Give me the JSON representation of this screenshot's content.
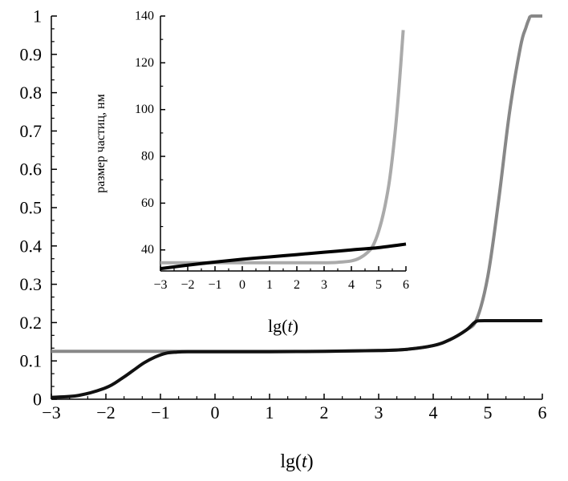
{
  "chart_data": [
    {
      "id": "main",
      "type": "line",
      "title": "",
      "xlabel_prefix": "lg(",
      "xlabel_var": "t",
      "xlabel_suffix": ")",
      "ylabel": "",
      "xlim": [
        -3,
        6
      ],
      "ylim": [
        0,
        1
      ],
      "xticks": [
        -3,
        -2,
        -1,
        0,
        1,
        2,
        3,
        4,
        5,
        6
      ],
      "xtick_labels": [
        "−3",
        "−2",
        "−1",
        "0",
        "1",
        "2",
        "3",
        "4",
        "5",
        "6"
      ],
      "yticks": [
        0,
        0.1,
        0.2,
        0.3,
        0.4,
        0.5,
        0.6,
        0.7,
        0.8,
        0.9,
        1
      ],
      "ytick_labels": [
        "0",
        "0.1",
        "0.2",
        "0.3",
        "0.4",
        "0.5",
        "0.6",
        "0.7",
        "0.8",
        "0.9",
        "1"
      ],
      "grid": false,
      "series": [
        {
          "color": "#888888",
          "x": [
            -3,
            -1,
            0,
            1,
            2,
            3,
            3.5,
            4,
            4.3,
            4.6,
            4.8,
            5.0,
            5.2,
            5.4,
            5.6,
            5.7,
            5.75,
            5.8,
            6
          ],
          "y": [
            0.125,
            0.125,
            0.125,
            0.125,
            0.125,
            0.127,
            0.13,
            0.14,
            0.155,
            0.18,
            0.21,
            0.32,
            0.52,
            0.75,
            0.92,
            0.97,
            0.99,
            1.0,
            1.0
          ]
        },
        {
          "color": "#111111",
          "x": [
            -3,
            -2.5,
            -2,
            -1.7,
            -1.5,
            -1.3,
            -1.1,
            -0.9,
            -0.7,
            -0.5,
            0,
            1,
            2,
            3,
            3.5,
            4,
            4.3,
            4.6,
            4.8,
            5,
            6
          ],
          "y": [
            0.005,
            0.01,
            0.03,
            0.055,
            0.075,
            0.095,
            0.11,
            0.12,
            0.123,
            0.124,
            0.124,
            0.124,
            0.125,
            0.127,
            0.13,
            0.14,
            0.155,
            0.18,
            0.204,
            0.205,
            0.205
          ]
        }
      ]
    },
    {
      "id": "inset",
      "type": "line",
      "title": "",
      "xlabel_prefix": "lg(",
      "xlabel_var": "t",
      "xlabel_suffix": ")",
      "ylabel": "размер частиц, нм",
      "xlim": [
        -3,
        6
      ],
      "ylim": [
        31,
        140
      ],
      "xticks": [
        -3,
        -2,
        -1,
        0,
        1,
        2,
        3,
        4,
        5,
        6
      ],
      "xtick_labels": [
        "−3",
        "−2",
        "−1",
        "0",
        "1",
        "2",
        "3",
        "4",
        "5",
        "6"
      ],
      "yticks": [
        40,
        60,
        80,
        100,
        120,
        140
      ],
      "ytick_labels": [
        "40",
        "60",
        "80",
        "100",
        "120",
        "140"
      ],
      "grid": false,
      "series": [
        {
          "color": "#aaaaaa",
          "x": [
            -3,
            0,
            2,
            3,
            3.5,
            4,
            4.3,
            4.6,
            4.8,
            5,
            5.2,
            5.4,
            5.6,
            5.75,
            5.9
          ],
          "y": [
            34.5,
            34.5,
            34.5,
            34.5,
            34.7,
            35.3,
            36.5,
            39,
            42,
            48,
            57,
            70,
            90,
            110,
            134
          ]
        },
        {
          "color": "#000000",
          "x": [
            -3,
            -2,
            -1,
            0,
            1,
            2,
            3,
            4,
            5,
            6
          ],
          "y": [
            32,
            33.5,
            34.8,
            36,
            37,
            38,
            39,
            40,
            41,
            42.5
          ]
        }
      ]
    }
  ]
}
